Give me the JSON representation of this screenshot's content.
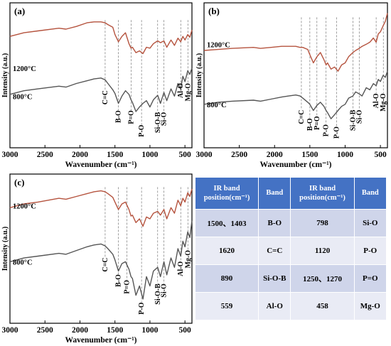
{
  "chart_data": [
    {
      "type": "line",
      "panel": "(a)",
      "xlabel": "Wavenumber (cm⁻¹)",
      "ylabel": "Intensity (a.u.)",
      "xlim": [
        3000,
        400
      ],
      "x_ticks": [
        "3000",
        "2500",
        "2000",
        "1500",
        "1000",
        "500"
      ],
      "series": [
        {
          "name": "1200°C",
          "color": "#b5533e",
          "x": [
            3000,
            2800,
            2600,
            2300,
            2200,
            2050,
            1900,
            1800,
            1700,
            1640,
            1600,
            1530,
            1500,
            1450,
            1400,
            1350,
            1300,
            1270,
            1250,
            1200,
            1150,
            1100,
            1050,
            1000,
            950,
            890,
            850,
            800,
            760,
            700,
            650,
            600,
            560,
            530,
            500,
            460,
            430,
            400
          ],
          "y": [
            0.68,
            0.72,
            0.74,
            0.77,
            0.76,
            0.79,
            0.83,
            0.84,
            0.84,
            0.83,
            0.81,
            0.78,
            0.7,
            0.62,
            0.68,
            0.72,
            0.6,
            0.55,
            0.56,
            0.5,
            0.52,
            0.49,
            0.56,
            0.55,
            0.6,
            0.63,
            0.61,
            0.63,
            0.56,
            0.64,
            0.58,
            0.66,
            0.62,
            0.68,
            0.64,
            0.7,
            0.67,
            0.75
          ]
        },
        {
          "name": "800°C",
          "color": "#555555",
          "x": [
            3000,
            2800,
            2600,
            2300,
            2200,
            2050,
            1900,
            1800,
            1700,
            1640,
            1600,
            1530,
            1500,
            1450,
            1400,
            1350,
            1300,
            1270,
            1250,
            1200,
            1150,
            1100,
            1050,
            1000,
            950,
            890,
            850,
            800,
            760,
            700,
            650,
            600,
            560,
            530,
            500,
            460,
            430,
            400
          ],
          "y": [
            0.04,
            0.08,
            0.1,
            0.13,
            0.12,
            0.16,
            0.19,
            0.21,
            0.22,
            0.2,
            0.16,
            0.09,
            0.05,
            -0.06,
            0.02,
            0.08,
            0.04,
            -0.02,
            -0.05,
            -0.15,
            -0.1,
            -0.06,
            -0.03,
            -0.1,
            -0.02,
            0.03,
            -0.06,
            0.06,
            -0.03,
            0.1,
            0.02,
            0.16,
            0.1,
            0.24,
            0.18,
            0.3,
            0.26,
            0.33
          ]
        }
      ],
      "annotations": [
        "C=C",
        "B-O",
        "P=O",
        "P-O",
        "Si-O-B",
        "Si-O",
        "Al-O",
        "Mg-O"
      ]
    },
    {
      "type": "line",
      "panel": "(b)",
      "xlabel": "Wavenumber (cm⁻¹)",
      "ylabel": "Intensity (a.u.)",
      "xlim": [
        3000,
        400
      ],
      "x_ticks": [
        "3000",
        "2500",
        "2000",
        "1500",
        "1000",
        "500"
      ],
      "series": [
        {
          "name": "1200°C",
          "color": "#b5533e",
          "x": [
            3000,
            2800,
            2600,
            2300,
            2200,
            2050,
            1900,
            1800,
            1700,
            1640,
            1600,
            1530,
            1500,
            1450,
            1400,
            1350,
            1300,
            1270,
            1250,
            1200,
            1150,
            1100,
            1050,
            1000,
            950,
            890,
            850,
            800,
            760,
            700,
            650,
            600,
            560,
            530,
            500,
            460,
            430,
            400
          ],
          "y": [
            0.54,
            0.55,
            0.56,
            0.57,
            0.56,
            0.57,
            0.58,
            0.58,
            0.58,
            0.57,
            0.57,
            0.55,
            0.5,
            0.42,
            0.48,
            0.52,
            0.45,
            0.4,
            0.42,
            0.36,
            0.38,
            0.34,
            0.4,
            0.42,
            0.48,
            0.52,
            0.54,
            0.56,
            0.58,
            0.6,
            0.62,
            0.66,
            0.62,
            0.7,
            0.72,
            0.78,
            0.82,
            0.9
          ]
        },
        {
          "name": "800°C",
          "color": "#555555",
          "x": [
            3000,
            2800,
            2600,
            2300,
            2200,
            2050,
            1900,
            1800,
            1700,
            1640,
            1600,
            1530,
            1500,
            1450,
            1400,
            1350,
            1300,
            1270,
            1250,
            1200,
            1150,
            1100,
            1050,
            1000,
            950,
            890,
            850,
            800,
            760,
            700,
            650,
            600,
            560,
            530,
            500,
            460,
            430,
            400
          ],
          "y": [
            0.02,
            0.04,
            0.05,
            0.06,
            0.05,
            0.07,
            0.09,
            0.1,
            0.11,
            0.1,
            0.08,
            0.04,
            0.02,
            -0.04,
            0.01,
            0.04,
            0.0,
            -0.04,
            -0.06,
            -0.12,
            -0.08,
            -0.04,
            0.0,
            0.02,
            0.08,
            0.1,
            0.14,
            0.12,
            0.1,
            0.18,
            0.16,
            0.22,
            0.2,
            0.26,
            0.24,
            0.3,
            0.28,
            0.34
          ]
        }
      ],
      "annotations": [
        "C=C",
        "B-O",
        "P=O",
        "P-O",
        "P-O",
        "Si-O-B",
        "Si-O",
        "Al-O",
        "Mg-O"
      ]
    },
    {
      "type": "line",
      "panel": "(c)",
      "xlabel": "Wavenumber (cm⁻¹)",
      "ylabel": "Intensity (a.u.)",
      "xlim": [
        3000,
        400
      ],
      "x_ticks": [
        "3000",
        "2500",
        "2000",
        "1500",
        "1000",
        "500"
      ],
      "series": [
        {
          "name": "1200°C",
          "color": "#b5533e",
          "x": [
            3000,
            2800,
            2600,
            2300,
            2200,
            2050,
            1900,
            1800,
            1700,
            1640,
            1600,
            1530,
            1500,
            1450,
            1400,
            1350,
            1300,
            1270,
            1250,
            1200,
            1150,
            1100,
            1050,
            1000,
            950,
            890,
            850,
            800,
            760,
            700,
            650,
            600,
            560,
            530,
            500,
            460,
            430,
            400
          ],
          "y": [
            0.64,
            0.68,
            0.7,
            0.74,
            0.73,
            0.76,
            0.79,
            0.81,
            0.82,
            0.81,
            0.79,
            0.75,
            0.7,
            0.62,
            0.68,
            0.7,
            0.62,
            0.55,
            0.56,
            0.48,
            0.52,
            0.44,
            0.54,
            0.52,
            0.58,
            0.6,
            0.56,
            0.62,
            0.52,
            0.64,
            0.58,
            0.72,
            0.66,
            0.74,
            0.7,
            0.8,
            0.76,
            0.84
          ]
        },
        {
          "name": "800°C",
          "color": "#555555",
          "x": [
            3000,
            2800,
            2600,
            2300,
            2200,
            2050,
            1900,
            1800,
            1700,
            1640,
            1600,
            1530,
            1500,
            1450,
            1400,
            1350,
            1300,
            1270,
            1250,
            1200,
            1150,
            1100,
            1050,
            1000,
            950,
            890,
            850,
            800,
            760,
            700,
            650,
            600,
            560,
            530,
            500,
            460,
            430,
            400
          ],
          "y": [
            0.06,
            0.1,
            0.12,
            0.15,
            0.14,
            0.18,
            0.22,
            0.24,
            0.25,
            0.23,
            0.2,
            0.14,
            0.08,
            -0.04,
            0.04,
            0.06,
            -0.02,
            -0.1,
            -0.12,
            -0.3,
            -0.2,
            -0.34,
            -0.1,
            -0.2,
            -0.04,
            0.0,
            -0.1,
            0.06,
            -0.08,
            0.1,
            0.0,
            0.2,
            0.12,
            0.28,
            0.22,
            0.38,
            0.32,
            0.5
          ]
        }
      ],
      "annotations": [
        "C=C",
        "B-O",
        "P=O",
        "P-O",
        "Si-O-B",
        "Si-O",
        "Al-O",
        "Mg-O"
      ]
    },
    {
      "type": "table",
      "headers": [
        "IR band position(cm⁻¹)",
        "Band",
        "IR band position(cm⁻¹)",
        "Band"
      ],
      "rows": [
        [
          "1500、1403",
          "B-O",
          "798",
          "Si-O"
        ],
        [
          "1620",
          "C=C",
          "1120",
          "P-O"
        ],
        [
          "890",
          "Si-O-B",
          "1250、1270",
          "P=O"
        ],
        [
          "559",
          "Al-O",
          "458",
          "Mg-O"
        ]
      ]
    }
  ]
}
